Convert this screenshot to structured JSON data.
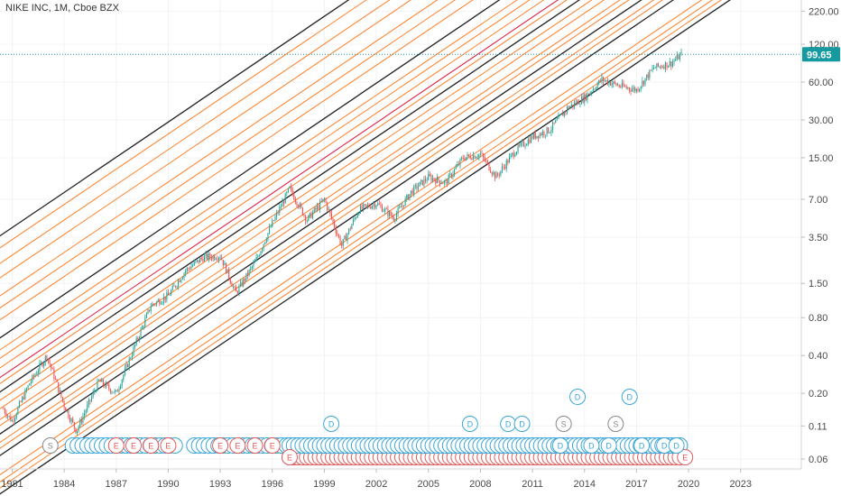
{
  "header": {
    "title": "NIKE INC, 1M, Cboe BZX"
  },
  "colors": {
    "up": "#26a69a",
    "down": "#ef5350",
    "channel_outer": "#222222",
    "channel_inner": "#ff7f27",
    "channel_mid": "#e0143c",
    "current_price": "#159aa2",
    "dividend": "#3aa6d8",
    "earnings": "#e05a5a",
    "split": "#888888"
  },
  "chart_data": {
    "type": "candlestick",
    "title": "NIKE INC, 1M, Cboe BZX",
    "scale": "log",
    "x_range": [
      1980.3,
      2026.5
    ],
    "y_range": [
      0.05,
      270
    ],
    "x_ticks": [
      "1981",
      "1984",
      "1987",
      "1990",
      "1993",
      "1996",
      "1999",
      "2002",
      "2005",
      "2008",
      "2011",
      "2014",
      "2017",
      "2020",
      "2023"
    ],
    "y_ticks": [
      "220.00",
      "120.00",
      "60.00",
      "30.00",
      "15.00",
      "7.00",
      "3.50",
      "1.50",
      "0.80",
      "0.40",
      "0.20",
      "0.11",
      "0.06"
    ],
    "current_price": "99.65",
    "price_path": [
      [
        1980.5,
        0.15
      ],
      [
        1981,
        0.12
      ],
      [
        1982,
        0.24
      ],
      [
        1983,
        0.4
      ],
      [
        1984,
        0.16
      ],
      [
        1984.7,
        0.1
      ],
      [
        1986,
        0.25
      ],
      [
        1987,
        0.2
      ],
      [
        1988,
        0.45
      ],
      [
        1989,
        1.0
      ],
      [
        1990,
        1.2
      ],
      [
        1991,
        1.9
      ],
      [
        1992,
        2.4
      ],
      [
        1993,
        2.5
      ],
      [
        1993.9,
        1.25
      ],
      [
        1995,
        2.2
      ],
      [
        1996,
        4.5
      ],
      [
        1997,
        8.5
      ],
      [
        1998,
        4.8
      ],
      [
        1999,
        7.0
      ],
      [
        2000,
        3.0
      ],
      [
        2001,
        5.8
      ],
      [
        2002,
        6.5
      ],
      [
        2003,
        5.0
      ],
      [
        2004,
        8.0
      ],
      [
        2005,
        10.5
      ],
      [
        2006,
        9.5
      ],
      [
        2007,
        15.0
      ],
      [
        2008,
        16.0
      ],
      [
        2008.9,
        10.5
      ],
      [
        2010,
        17.0
      ],
      [
        2011,
        22.0
      ],
      [
        2012,
        25.0
      ],
      [
        2013,
        37.0
      ],
      [
        2014,
        45.0
      ],
      [
        2015,
        63.0
      ],
      [
        2016,
        56.0
      ],
      [
        2017,
        52.0
      ],
      [
        2018,
        78.0
      ],
      [
        2019,
        85.0
      ],
      [
        2019.6,
        99.65
      ]
    ],
    "channel": {
      "base_point": [
        1980.3,
        0.095
      ],
      "annual_growth": 1.24,
      "mid_offset": 0.47,
      "outer_offsets": [
        -0.5,
        -0.18,
        0.0,
        0.35,
        0.8,
        1.65
      ],
      "inner_offsets": [
        -0.45,
        -0.4,
        -0.34,
        -0.12,
        -0.07,
        0.07,
        0.12,
        0.21,
        0.28,
        0.42,
        0.55,
        0.63,
        0.7,
        0.95,
        1.05,
        1.15,
        1.3,
        1.42,
        1.55
      ]
    },
    "event_markers": {
      "splits": [
        [
          1983.2,
          1
        ],
        [
          2012.8,
          2
        ],
        [
          2015.8,
          2
        ]
      ],
      "dividends_row1_ranges": [
        [
          1984.5,
          1990.6
        ],
        [
          1991.5,
          1997.5
        ],
        [
          1997.0,
          2008.3
        ],
        [
          2008.5,
          2019.5
        ]
      ],
      "dividends_row1_spacing": 0.28,
      "dividends_labeled": [
        [
          1999.4,
          2
        ],
        [
          2007.4,
          2
        ],
        [
          2009.6,
          2
        ],
        [
          2010.4,
          2
        ],
        [
          2012.6,
          1
        ],
        [
          2014.4,
          1
        ],
        [
          2015.4,
          1
        ],
        [
          2017.3,
          1
        ],
        [
          2018.6,
          1
        ],
        [
          2019.3,
          1
        ],
        [
          2013.6,
          3
        ],
        [
          2016.6,
          3
        ]
      ],
      "dividends_row2_range": [
        1997.0,
        2019.5
      ],
      "dividends_row2_spacing": 0.25,
      "earnings_labeled": [
        1987.0,
        1988.0,
        1989.0,
        1990.0,
        1993.0,
        1994.0,
        1995.0,
        1996.0,
        1997.0,
        2019.8
      ],
      "earnings_row_range": [
        1997.0,
        2019.6
      ],
      "earnings_row_spacing": 0.25,
      "labels": {
        "dividend": "D",
        "earnings": "E",
        "split": "S"
      }
    }
  }
}
